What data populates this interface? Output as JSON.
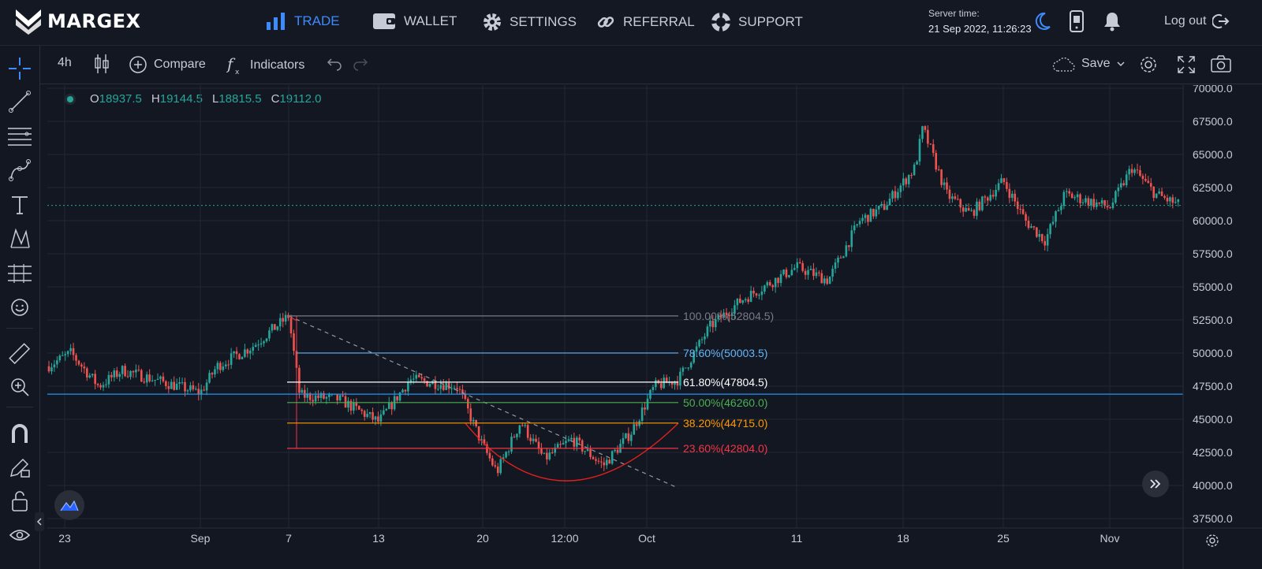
{
  "brand": {
    "name": "MARGEX"
  },
  "nav": {
    "trade": "TRADE",
    "wallet": "WALLET",
    "settings": "SETTINGS",
    "referral": "REFERRAL",
    "support": "SUPPORT"
  },
  "server_time": {
    "label": "Server time:",
    "value": "21 Sep 2022, 11:26:23"
  },
  "logout": "Log out",
  "toolbar": {
    "interval": "4h",
    "compare": "Compare",
    "indicators": "Indicators",
    "save": "Save"
  },
  "ohlc": {
    "o_label": "O",
    "o_value": "18937.5",
    "h_label": "H",
    "h_value": "19144.5",
    "l_label": "L",
    "l_value": "18815.5",
    "c_label": "C",
    "c_value": "19112.0"
  },
  "colors": {
    "up": "#26a69a",
    "down": "#ef5350",
    "accent": "#3d8bfd",
    "background": "#131722",
    "fib_100": "#787b86",
    "fib_786": "#64b5f6",
    "fib_618": "#ffffff",
    "fib_50": "#4caf50",
    "fib_382": "#ff9800",
    "fib_236": "#f23645"
  },
  "chart_data": {
    "type": "candlestick",
    "symbol_interval": "4h",
    "ylim": [
      37500,
      70000
    ],
    "y_ticks": [
      "70000.0",
      "67500.0",
      "65000.0",
      "62500.0",
      "60000.0",
      "57500.0",
      "55000.0",
      "52500.0",
      "50000.0",
      "47500.0",
      "45000.0",
      "42500.0",
      "40000.0",
      "37500.0"
    ],
    "x_ticks": [
      "23",
      "Sep",
      "7",
      "13",
      "20",
      "12:00",
      "Oct",
      "11",
      "18",
      "25",
      "Nov"
    ],
    "last_price": "61153.0",
    "hline_price": "46898.0",
    "fib_levels": [
      {
        "label": "100.00%(52804.5)",
        "price": 52804.5
      },
      {
        "label": "78.60%(50003.5)",
        "price": 50003.5
      },
      {
        "label": "61.80%(47804.5)",
        "price": 47804.5
      },
      {
        "label": "50.00%(46260.0)",
        "price": 46260.0
      },
      {
        "label": "38.20%(44715.0)",
        "price": 44715.0
      },
      {
        "label": "23.60%(42804.0)",
        "price": 42804.0
      }
    ],
    "price_path": [
      {
        "x": "23",
        "y": 49000
      },
      {
        "x": "25",
        "y": 50000
      },
      {
        "x": "28",
        "y": 47500
      },
      {
        "x": "30",
        "y": 48700
      },
      {
        "x": "Sep",
        "y": 47000
      },
      {
        "x": "3",
        "y": 49000
      },
      {
        "x": "5",
        "y": 50500
      },
      {
        "x": "7",
        "y": 52800
      },
      {
        "x": "8",
        "y": 46800
      },
      {
        "x": "11",
        "y": 46500
      },
      {
        "x": "13",
        "y": 44800
      },
      {
        "x": "16",
        "y": 48000
      },
      {
        "x": "19",
        "y": 47500
      },
      {
        "x": "20",
        "y": 43000
      },
      {
        "x": "21",
        "y": 41000
      },
      {
        "x": "22",
        "y": 44800
      },
      {
        "x": "23",
        "y": 42000
      },
      {
        "x": "25",
        "y": 43500
      },
      {
        "x": "27",
        "y": 41500
      },
      {
        "x": "29",
        "y": 44000
      },
      {
        "x": "Oct",
        "y": 47500
      },
      {
        "x": "3",
        "y": 48000
      },
      {
        "x": "5",
        "y": 52000
      },
      {
        "x": "7",
        "y": 54000
      },
      {
        "x": "11",
        "y": 56500
      },
      {
        "x": "13",
        "y": 55500
      },
      {
        "x": "15",
        "y": 60000
      },
      {
        "x": "17",
        "y": 61000
      },
      {
        "x": "19",
        "y": 64000
      },
      {
        "x": "20",
        "y": 67000
      },
      {
        "x": "21",
        "y": 62000
      },
      {
        "x": "23",
        "y": 60500
      },
      {
        "x": "25",
        "y": 63000
      },
      {
        "x": "26",
        "y": 60000
      },
      {
        "x": "27",
        "y": 58500
      },
      {
        "x": "29",
        "y": 62000
      },
      {
        "x": "Nov",
        "y": 61000
      },
      {
        "x": "2",
        "y": 64000
      },
      {
        "x": "4",
        "y": 62000
      },
      {
        "x": "6",
        "y": 61153
      }
    ]
  }
}
